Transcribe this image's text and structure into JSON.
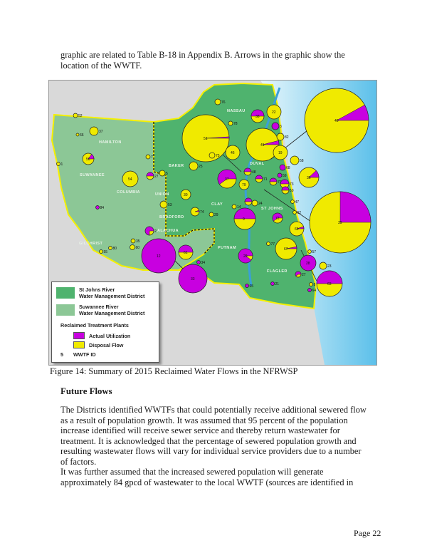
{
  "intro": "graphic are related to Table B-18 in Appendix B. Arrows in the graphic show the location of the WWTF.",
  "figure": {
    "caption": "Figure 14: Summary of 2015 Reclaimed Water Flows in the NFRWSP",
    "colors": {
      "sjrwmd": "#4fb36e",
      "srwmd": "#8cc796",
      "actual_utilization": "#c800e0",
      "disposal_flow": "#f0ea00",
      "water": "#8fd3f0",
      "outside_land": "#d9d9d9",
      "district_border": "#f5f000"
    },
    "counties": [
      "HAMILTON",
      "SUWANNEE",
      "COLUMBIA",
      "BAKER",
      "UNION",
      "BRADFORD",
      "ALACHUA",
      "GILCHRIST",
      "NASSAU",
      "DUVAL",
      "CLAY",
      "ST JOHNS",
      "PUTNAM",
      "FLAGLER"
    ],
    "legend": {
      "sjrwmd": "St Johns River\nWater Management District",
      "srwmd": "Suwannee River\nWater Management District",
      "plants_title": "Reclaimed Treatment Plants",
      "actual_utilization": "Actual Utilization",
      "disposal_flow": "Disposal Flow",
      "id_sample": "5",
      "id_label": "WWTF ID"
    },
    "wwtfs": [
      {
        "id": "40",
        "utilization": 0.08
      },
      {
        "id": "39",
        "utilization": 0.25
      },
      {
        "id": "51",
        "utilization": 0.01
      },
      {
        "id": "41",
        "utilization": 0.04
      },
      {
        "id": "46",
        "utilization": 0
      },
      {
        "id": "22",
        "utilization": 0
      },
      {
        "id": "38",
        "utilization": 0.5
      },
      {
        "id": "3",
        "utilization": 1
      },
      {
        "id": "82",
        "utilization": 0
      },
      {
        "id": "19",
        "utilization": 0
      },
      {
        "id": "58",
        "utilization": 0
      },
      {
        "id": "37",
        "utilization": 0.6
      },
      {
        "id": "79",
        "utilization": 0
      },
      {
        "id": "36",
        "utilization": 0.12
      },
      {
        "id": "9",
        "utilization": 0.5
      },
      {
        "id": "12",
        "utilization": 1
      },
      {
        "id": "33",
        "utilization": 1
      },
      {
        "id": "61",
        "utilization": 0.5
      },
      {
        "id": "67",
        "utilization": 0.03
      },
      {
        "id": "28",
        "utilization": 1
      },
      {
        "id": "63",
        "utilization": 0.5
      },
      {
        "id": "54",
        "utilization": 0
      },
      {
        "id": "56",
        "utilization": 0.15
      },
      {
        "id": "37",
        "utilization": 0
      },
      {
        "id": "25",
        "utilization": 0
      },
      {
        "id": "30",
        "utilization": 0
      },
      {
        "id": "74",
        "utilization": 0.05
      },
      {
        "id": "53",
        "utilization": 0
      },
      {
        "id": "2",
        "utilization": 0.75
      },
      {
        "id": "69",
        "utilization": 0.05
      },
      {
        "id": "72",
        "utilization": 0.6
      },
      {
        "id": "29",
        "utilization": 0.9
      },
      {
        "id": "23",
        "utilization": 0
      },
      {
        "id": "52",
        "utilization": 0
      },
      {
        "id": "66",
        "utilization": 0
      },
      {
        "id": "1",
        "utilization": 0
      },
      {
        "id": "84",
        "utilization": 1
      },
      {
        "id": "7",
        "utilization": 0
      },
      {
        "id": "27",
        "utilization": 0.5
      },
      {
        "id": "5",
        "utilization": 0
      },
      {
        "id": "35",
        "utilization": 0
      },
      {
        "id": "60",
        "utilization": 0
      },
      {
        "id": "80",
        "utilization": 0
      },
      {
        "id": "55",
        "utilization": 0
      },
      {
        "id": "34",
        "utilization": 1
      },
      {
        "id": "65",
        "utilization": 1
      },
      {
        "id": "21",
        "utilization": 1
      },
      {
        "id": "27",
        "utilization": 0.6
      },
      {
        "id": "8",
        "utilization": 0
      },
      {
        "id": "64",
        "utilization": 1
      },
      {
        "id": "57",
        "utilization": 0
      },
      {
        "id": "77",
        "utilization": 0
      },
      {
        "id": "62",
        "utilization": 0
      },
      {
        "id": "47",
        "utilization": 0
      },
      {
        "id": "68",
        "utilization": 1
      },
      {
        "id": "14",
        "utilization": 0
      },
      {
        "id": "31",
        "utilization": 0.5
      },
      {
        "id": "24",
        "utilization": 0
      },
      {
        "id": "29",
        "utilization": 0
      },
      {
        "id": "75",
        "utilization": 0
      },
      {
        "id": "76",
        "utilization": 0
      },
      {
        "id": "78",
        "utilization": 0
      },
      {
        "id": "48",
        "utilization": 0.5
      },
      {
        "id": "70",
        "utilization": 0.5
      },
      {
        "id": "73",
        "utilization": 0.5
      },
      {
        "id": "50",
        "utilization": 0.5
      },
      {
        "id": "71",
        "utilization": 0.5
      },
      {
        "id": "59",
        "utilization": 1
      }
    ]
  },
  "section": {
    "heading": "Future Flows",
    "p1": "The Districts identified WWTFs that could potentially receive additional sewered flow as a result of population growth. It was assumed that 95 percent of the population increase identified will receive sewer service and thereby return wastewater for treatment. It is acknowledged that the percentage of sewered population growth and resulting wastewater flows will vary for individual service providers due to a number of factors.",
    "p2": "It was further assumed that the increased sewered population will generate approximately 84 gpcd of wastewater to the local WWTF (sources are identified in"
  },
  "page": "Page 22"
}
